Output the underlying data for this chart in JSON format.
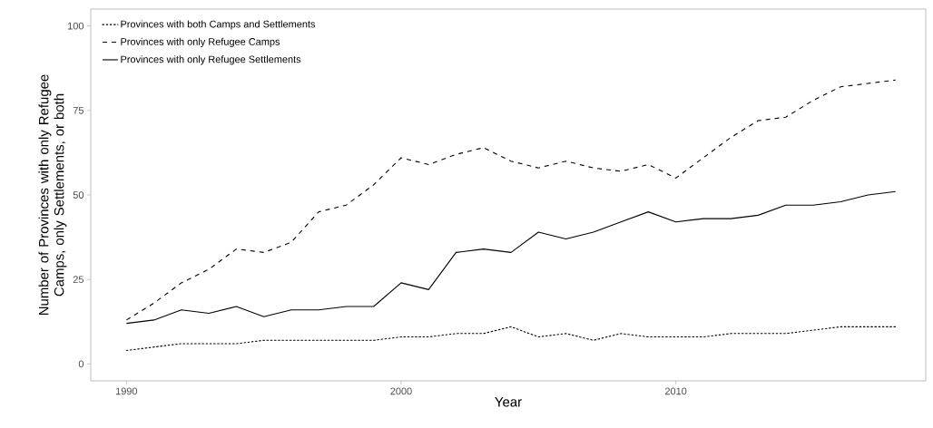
{
  "chart_data": {
    "type": "line",
    "xlabel": "Year",
    "ylabel": "Number of Provinces with only Refugee Camps, only Settlements, or both",
    "x": [
      1990,
      1991,
      1992,
      1993,
      1994,
      1995,
      1996,
      1997,
      1998,
      1999,
      2000,
      2001,
      2002,
      2003,
      2004,
      2005,
      2006,
      2007,
      2008,
      2009,
      2010,
      2011,
      2012,
      2013,
      2014,
      2015,
      2016,
      2017,
      2018
    ],
    "series": [
      {
        "name": "Provinces with both Camps and Settlements",
        "color": "#000000",
        "line_style": "dotted",
        "values": [
          4,
          5,
          6,
          6,
          6,
          7,
          7,
          7,
          7,
          7,
          8,
          8,
          9,
          9,
          11,
          8,
          9,
          7,
          9,
          8,
          8,
          8,
          9,
          9,
          9,
          10,
          11,
          11,
          11
        ]
      },
      {
        "name": "Provinces with only Refugee Camps",
        "color": "#000000",
        "line_style": "dashed",
        "values": [
          13,
          18,
          24,
          28,
          34,
          33,
          36,
          45,
          47,
          53,
          61,
          59,
          62,
          64,
          60,
          58,
          60,
          58,
          57,
          59,
          55,
          61,
          67,
          72,
          73,
          78,
          82,
          83,
          84
        ]
      },
      {
        "name": "Provinces with only Refugee Settlements",
        "color": "#000000",
        "line_style": "solid",
        "values": [
          12,
          13,
          16,
          15,
          17,
          14,
          16,
          16,
          17,
          17,
          24,
          22,
          33,
          34,
          33,
          39,
          37,
          39,
          42,
          45,
          42,
          43,
          43,
          44,
          47,
          47,
          48,
          50,
          51
        ]
      }
    ],
    "xlim": [
      1988.7,
      2019.1
    ],
    "ylim": [
      -5,
      105
    ],
    "xticks": [
      1990,
      2000,
      2010
    ],
    "yticks": [
      0,
      25,
      50,
      75,
      100
    ],
    "legend": "top left"
  }
}
